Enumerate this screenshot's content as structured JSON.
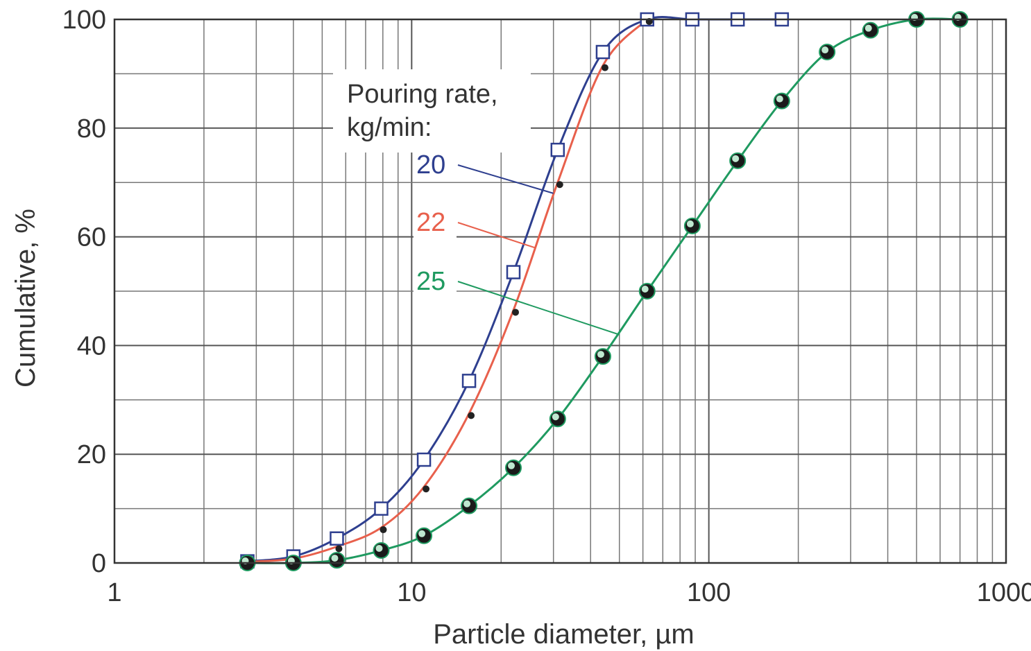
{
  "chart_data": {
    "type": "line",
    "xlabel": "Particle diameter, µm",
    "ylabel": "Cumulative, %",
    "xscale": "log",
    "xlim": [
      1,
      1000
    ],
    "ylim": [
      0,
      100
    ],
    "x_ticks": [
      "1",
      "10",
      "100",
      "1000"
    ],
    "y_ticks": [
      "0",
      "20",
      "40",
      "60",
      "80",
      "100"
    ],
    "grid": true,
    "legend": {
      "title_line1": "Pouring rate,",
      "title_line2": "kg/min:",
      "placement": "upper-middle, labels with leader lines to curves"
    },
    "series": [
      {
        "name": "20",
        "color": "#2e3f8f",
        "marker": "square",
        "x": [
          2.8,
          4,
          5.6,
          7.9,
          11,
          15.6,
          22,
          31,
          44,
          62,
          88,
          125,
          176
        ],
        "y": [
          0.3,
          1.2,
          4.5,
          10,
          19,
          33.5,
          53.5,
          76,
          94,
          100,
          100,
          100,
          100
        ]
      },
      {
        "name": "22",
        "color": "#e8604c",
        "marker": "dot",
        "x": [
          2.8,
          4,
          5.6,
          7.9,
          11,
          15.6,
          22,
          31,
          44,
          62
        ],
        "y": [
          0.2,
          0.8,
          3,
          6.5,
          14,
          27.5,
          46.5,
          70,
          91.5,
          100
        ]
      },
      {
        "name": "25",
        "color": "#1f9a60",
        "marker": "circle",
        "x": [
          2.8,
          4,
          5.6,
          7.9,
          11,
          15.6,
          22,
          31,
          44,
          62,
          88,
          125,
          176,
          250,
          350,
          500,
          700
        ],
        "y": [
          0,
          0,
          0.5,
          2.3,
          5,
          10.5,
          17.5,
          26.5,
          38,
          50,
          62,
          74,
          85,
          94,
          98,
          100,
          100
        ]
      }
    ]
  }
}
